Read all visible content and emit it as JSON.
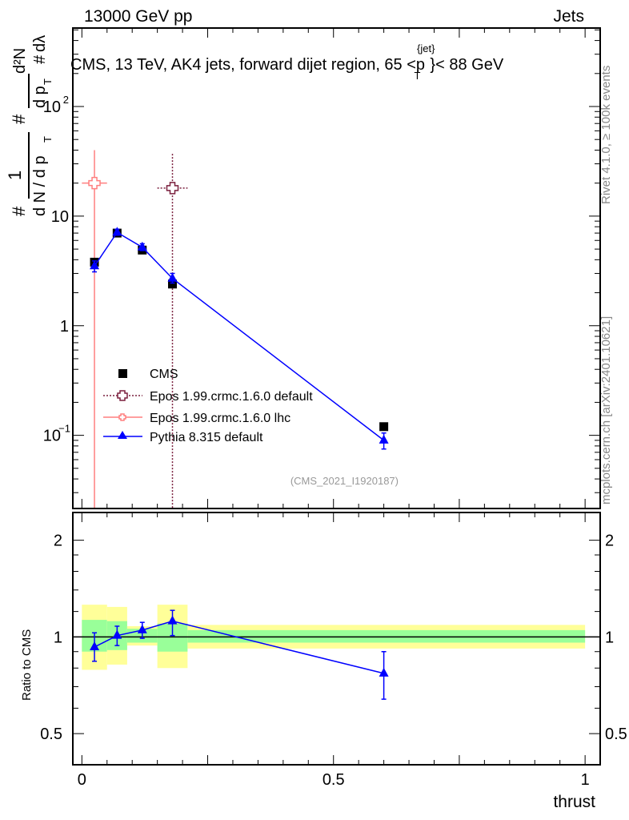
{
  "header": {
    "left": "13000 GeV pp",
    "right": "Jets"
  },
  "side_labels": {
    "rivet": "Rivet 4.1.0, ≥ 100k events",
    "mcplots": "mcplots.cern.ch [arXiv:2401.10621]"
  },
  "chart_data": [
    {
      "type": "scatter",
      "title": "CMS, 13 TeV, AK4 jets, forward dijet region, 65 < p_T^{jet} < 88 GeV",
      "title_parts": {
        "pre": "CMS, 13 TeV, AK4 jets, forward dijet region, 65 <p",
        "sup": "{jet}",
        "sub": "T",
        "post": "}< 88 GeV"
      },
      "ylabel_parts": {
        "a": "#",
        "b": "1",
        "c": "d N / d p",
        "d": "T",
        "e": "#",
        "f": "d p",
        "g": "T",
        "h": "d²N",
        "i": "dλ",
        "j": "#"
      },
      "yscale": "log",
      "ylim": [
        0.0215,
        520
      ],
      "xlim": [
        -0.018,
        1.03
      ],
      "ytick_labels": [
        {
          "v": 100,
          "t": "10",
          "sup": "2"
        },
        {
          "v": 10,
          "t": "10",
          "sup": ""
        },
        {
          "v": 1,
          "t": "1",
          "sup": ""
        },
        {
          "v": 0.1,
          "t": "10",
          "sup": "−1"
        }
      ],
      "legend_position": "bottom-left",
      "annotation": "(CMS_2021_I1920187)",
      "series": [
        {
          "name": "CMS",
          "color": "#000000",
          "marker": "square",
          "x": [
            0.025,
            0.07,
            0.12,
            0.18,
            0.6
          ],
          "y": [
            3.8,
            7.0,
            4.9,
            2.4,
            0.12
          ],
          "yerr": [
            0.3,
            0.5,
            0.35,
            0.2,
            0.01
          ]
        },
        {
          "name": "Epos 1.99.crmc.1.6.0 default",
          "color": "#7a1f3d",
          "marker": "open-cross",
          "line": "dotted",
          "x": [
            0.18
          ],
          "y": [
            18
          ],
          "xlo": [
            0.15
          ],
          "xhi": [
            0.21
          ],
          "ylo": [
            0.001
          ],
          "yhi": [
            37
          ]
        },
        {
          "name": "Epos 1.99.crmc.1.6.0 lhc",
          "color": "#ff7f7f",
          "marker": "open-cross",
          "line": "solid",
          "x": [
            0.025
          ],
          "y": [
            20
          ],
          "xlo": [
            0.0
          ],
          "xhi": [
            0.05
          ],
          "ylo": [
            0.001
          ],
          "yhi": [
            40
          ]
        },
        {
          "name": "Pythia 8.315 default",
          "color": "#0000ff",
          "marker": "triangle",
          "line": "solid",
          "x": [
            0.025,
            0.07,
            0.12,
            0.18,
            0.6
          ],
          "y": [
            3.5,
            7.1,
            5.2,
            2.7,
            0.09
          ],
          "ylo": [
            3.1,
            6.7,
            4.85,
            2.45,
            0.075
          ],
          "yhi": [
            3.9,
            7.6,
            5.6,
            3.0,
            0.105
          ]
        }
      ]
    },
    {
      "type": "line",
      "ylabel": "Ratio to CMS",
      "xlabel": "thrust",
      "yscale": "log",
      "ylim": [
        0.4,
        2.44
      ],
      "xlim": [
        -0.018,
        1.03
      ],
      "ytick_labels": [
        {
          "v": 2,
          "t": "2"
        },
        {
          "v": 1,
          "t": "1"
        },
        {
          "v": 0.5,
          "t": "0.5"
        }
      ],
      "xtick_labels": [
        {
          "v": 0,
          "t": "0"
        },
        {
          "v": 0.5,
          "t": "0.5"
        },
        {
          "v": 1,
          "t": "1"
        }
      ],
      "bins": [
        [
          0.0,
          0.05
        ],
        [
          0.05,
          0.09
        ],
        [
          0.09,
          0.15
        ],
        [
          0.15,
          0.21
        ],
        [
          0.21,
          1.0
        ]
      ],
      "band_yellow": [
        [
          0.79,
          1.26
        ],
        [
          0.82,
          1.24
        ],
        [
          0.94,
          1.08
        ],
        [
          0.8,
          1.26
        ],
        [
          0.92,
          1.09
        ]
      ],
      "band_green": [
        [
          0.9,
          1.13
        ],
        [
          0.91,
          1.12
        ],
        [
          0.96,
          1.06
        ],
        [
          0.9,
          1.1
        ],
        [
          0.96,
          1.05
        ]
      ],
      "bands_color": {
        "yellow": "#ffff99",
        "green": "#99ff99"
      },
      "series": [
        {
          "name": "Pythia 8.315 default",
          "color": "#0000ff",
          "x": [
            0.025,
            0.07,
            0.12,
            0.18,
            0.6
          ],
          "y": [
            0.93,
            1.01,
            1.05,
            1.12,
            0.77
          ],
          "ylo": [
            0.84,
            0.94,
            0.99,
            1.01,
            0.64
          ],
          "yhi": [
            1.03,
            1.08,
            1.11,
            1.21,
            0.9
          ]
        }
      ]
    }
  ]
}
